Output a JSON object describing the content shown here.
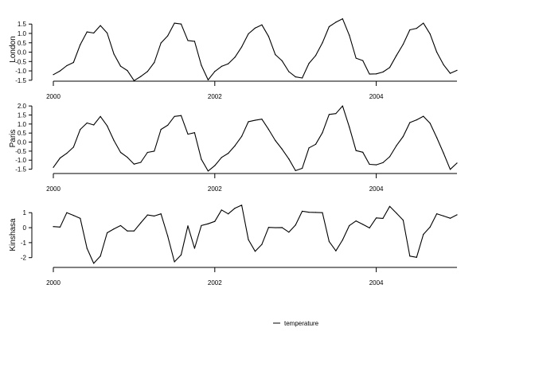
{
  "chart_data": {
    "type": "line",
    "legend": {
      "label": "temperature",
      "placement": "bottom"
    },
    "grid": false,
    "x_ticks": [
      "2000",
      "2002",
      "2004"
    ],
    "x_tick_values": [
      0,
      24,
      48
    ],
    "panels": [
      {
        "name": "London",
        "ylim": [
          -1.55,
          1.85
        ],
        "y_ticks": [
          "-1.5",
          "-1.0",
          "-0.5",
          "0.0",
          "0.5",
          "1.0",
          "1.5"
        ],
        "y_tick_values": [
          -1.5,
          -1.0,
          -0.5,
          0.0,
          0.5,
          1.0,
          1.5
        ],
        "values": [
          -1.2,
          -1.0,
          -0.72,
          -0.55,
          0.4,
          1.08,
          1.02,
          1.42,
          1.02,
          -0.1,
          -0.75,
          -0.98,
          -1.52,
          -1.3,
          -1.03,
          -0.55,
          0.49,
          0.87,
          1.55,
          1.5,
          0.62,
          0.58,
          -0.7,
          -1.48,
          -1.03,
          -0.76,
          -0.62,
          -0.27,
          0.28,
          0.98,
          1.29,
          1.46,
          0.84,
          -0.13,
          -0.46,
          -1.04,
          -1.32,
          -1.38,
          -0.6,
          -0.18,
          0.5,
          1.36,
          1.6,
          1.78,
          0.9,
          -0.32,
          -0.45,
          -1.17,
          -1.16,
          -1.06,
          -0.82,
          -0.18,
          0.42,
          1.19,
          1.27,
          1.55,
          0.97,
          0.0,
          -0.67,
          -1.13,
          -0.97
        ]
      },
      {
        "name": "Paris",
        "ylim": [
          -1.65,
          2.05
        ],
        "y_ticks": [
          "-1.5",
          "-1.0",
          "-0.5",
          "0.0",
          "0.5",
          "1.0",
          "1.5",
          "2.0"
        ],
        "y_tick_values": [
          -1.5,
          -1.0,
          -0.5,
          0.0,
          0.5,
          1.0,
          1.5,
          2.0
        ],
        "values": [
          -1.4,
          -0.88,
          -0.62,
          -0.28,
          0.7,
          1.06,
          0.95,
          1.42,
          0.9,
          0.09,
          -0.57,
          -0.84,
          -1.22,
          -1.12,
          -0.57,
          -0.5,
          0.7,
          0.93,
          1.42,
          1.47,
          0.44,
          0.52,
          -0.95,
          -1.6,
          -1.3,
          -0.85,
          -0.62,
          -0.2,
          0.32,
          1.13,
          1.21,
          1.27,
          0.7,
          0.09,
          -0.39,
          -0.93,
          -1.58,
          -1.45,
          -0.32,
          -0.12,
          0.52,
          1.53,
          1.58,
          2.0,
          0.83,
          -0.47,
          -0.56,
          -1.23,
          -1.26,
          -1.14,
          -0.81,
          -0.2,
          0.31,
          1.08,
          1.23,
          1.43,
          1.04,
          0.25,
          -0.61,
          -1.51,
          -1.16
        ]
      },
      {
        "name": "Kinshasa",
        "ylim": [
          -2.6,
          1.65
        ],
        "y_ticks": [
          "-2",
          "-1",
          "0",
          "1"
        ],
        "y_tick_values": [
          -2,
          -1,
          0,
          1
        ],
        "values": [
          0.07,
          0.04,
          1.0,
          0.82,
          0.62,
          -1.38,
          -2.38,
          -1.9,
          -0.34,
          -0.08,
          0.14,
          -0.22,
          -0.22,
          0.32,
          0.85,
          0.78,
          0.92,
          -0.55,
          -2.28,
          -1.82,
          0.12,
          -1.38,
          0.14,
          0.26,
          0.42,
          1.18,
          0.92,
          1.3,
          1.5,
          -0.8,
          -1.58,
          -1.12,
          0.02,
          0.0,
          0.01,
          -0.3,
          0.18,
          1.1,
          1.03,
          1.02,
          1.0,
          -0.92,
          -1.55,
          -0.82,
          0.14,
          0.45,
          0.22,
          -0.02,
          0.65,
          0.62,
          1.42,
          0.97,
          0.5,
          -1.9,
          -1.98,
          -0.45,
          0.04,
          0.93,
          0.78,
          0.63,
          0.86
        ]
      }
    ]
  }
}
